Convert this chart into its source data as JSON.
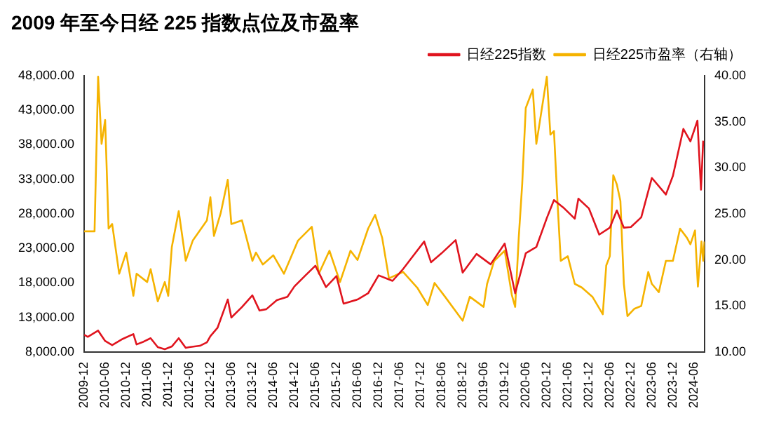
{
  "chart_data": {
    "type": "line",
    "title": "2009 年至今日经 225 指数点位及市盈率",
    "xlim": [
      "2009-12",
      "2024-09"
    ],
    "xticks": [
      "2009-12",
      "2010-06",
      "2010-12",
      "2011-06",
      "2011-12",
      "2012-06",
      "2012-12",
      "2013-06",
      "2013-12",
      "2014-06",
      "2014-12",
      "2015-06",
      "2015-12",
      "2016-06",
      "2016-12",
      "2017-06",
      "2017-12",
      "2018-06",
      "2018-12",
      "2019-06",
      "2019-12",
      "2020-06",
      "2020-12",
      "2021-06",
      "2021-12",
      "2022-06",
      "2022-12",
      "2023-06",
      "2023-12",
      "2024-06"
    ],
    "ylim": [
      8000,
      48000
    ],
    "yticks": [
      {
        "value": 8000,
        "label": "8,000.00"
      },
      {
        "value": 13000,
        "label": "13,000.00"
      },
      {
        "value": 18000,
        "label": "18,000.00"
      },
      {
        "value": 23000,
        "label": "23,000.00"
      },
      {
        "value": 28000,
        "label": "28,000.00"
      },
      {
        "value": 33000,
        "label": "33,000.00"
      },
      {
        "value": 38000,
        "label": "38,000.00"
      },
      {
        "value": 43000,
        "label": "43,000.00"
      },
      {
        "value": 48000,
        "label": "48,000.00"
      }
    ],
    "y2lim": [
      10,
      40
    ],
    "y2ticks": [
      {
        "value": 10,
        "label": "10.00"
      },
      {
        "value": 15,
        "label": "15.00"
      },
      {
        "value": 20,
        "label": "20.00"
      },
      {
        "value": 25,
        "label": "25.00"
      },
      {
        "value": 30,
        "label": "30.00"
      },
      {
        "value": 35,
        "label": "35.00"
      },
      {
        "value": 40,
        "label": "40.00"
      }
    ],
    "grid": false,
    "legend": "top right",
    "marker": "none",
    "line_style": "solid",
    "series": [
      {
        "name": "日经225指数",
        "color": "#e0141e",
        "x": [
          "2009-12",
          "2010-01",
          "2010-04",
          "2010-06",
          "2010-08",
          "2010-11",
          "2011-02",
          "2011-03",
          "2011-05",
          "2011-07",
          "2011-09",
          "2011-11",
          "2012-01",
          "2012-03",
          "2012-05",
          "2012-06",
          "2012-09",
          "2012-11",
          "2012-12",
          "2013-02",
          "2013-05",
          "2013-06",
          "2013-09",
          "2013-12",
          "2014-02",
          "2014-04",
          "2014-07",
          "2014-10",
          "2014-12",
          "2015-03",
          "2015-06",
          "2015-09",
          "2015-12",
          "2016-02",
          "2016-06",
          "2016-09",
          "2016-12",
          "2017-04",
          "2017-07",
          "2017-10",
          "2018-01",
          "2018-03",
          "2018-06",
          "2018-10",
          "2018-12",
          "2019-04",
          "2019-08",
          "2019-12",
          "2020-03",
          "2020-06",
          "2020-09",
          "2020-12",
          "2021-02",
          "2021-05",
          "2021-08",
          "2021-09",
          "2021-12",
          "2022-03",
          "2022-06",
          "2022-08",
          "2022-10",
          "2022-12",
          "2023-03",
          "2023-06",
          "2023-10",
          "2023-12",
          "2024-03",
          "2024-05",
          "2024-07",
          "2024-08",
          "2024-08-20"
        ],
        "values": [
          10500,
          10200,
          11100,
          9600,
          9000,
          9900,
          10600,
          9100,
          9500,
          10000,
          8700,
          8400,
          8800,
          10000,
          8600,
          8700,
          8900,
          9400,
          10300,
          11500,
          15600,
          13000,
          14500,
          16200,
          14000,
          14200,
          15500,
          16000,
          17500,
          19000,
          20500,
          17400,
          19000,
          15000,
          15600,
          16500,
          19100,
          18300,
          20000,
          22000,
          24000,
          21000,
          22300,
          24200,
          19500,
          22200,
          20700,
          23700,
          16500,
          22300,
          23200,
          27400,
          30000,
          28800,
          27300,
          30200,
          28800,
          25000,
          26000,
          28500,
          26000,
          26100,
          27500,
          33200,
          30800,
          33500,
          40300,
          38500,
          41500,
          31500,
          38600
        ]
      },
      {
        "name": "日经225市盈率（右轴）",
        "color": "#f5b300",
        "axis": "y2",
        "x": [
          "2009-12",
          "2010-03",
          "2010-04",
          "2010-05",
          "2010-06",
          "2010-07",
          "2010-08",
          "2010-10",
          "2010-12",
          "2011-02",
          "2011-03",
          "2011-06",
          "2011-07",
          "2011-09",
          "2011-11",
          "2011-12",
          "2012-01",
          "2012-03",
          "2012-05",
          "2012-07",
          "2012-11",
          "2012-12",
          "2013-01",
          "2013-03",
          "2013-05",
          "2013-06",
          "2013-09",
          "2013-12",
          "2014-01",
          "2014-03",
          "2014-06",
          "2014-09",
          "2015-01",
          "2015-05",
          "2015-07",
          "2015-10",
          "2016-01",
          "2016-04",
          "2016-06",
          "2016-09",
          "2016-11",
          "2017-01",
          "2017-03",
          "2017-07",
          "2017-11",
          "2018-02",
          "2018-04",
          "2018-07",
          "2018-12",
          "2019-02",
          "2019-06",
          "2019-07",
          "2019-09",
          "2019-12",
          "2020-02",
          "2020-03",
          "2020-04",
          "2020-05",
          "2020-06",
          "2020-08",
          "2020-09",
          "2020-10",
          "2020-12",
          "2021-01",
          "2021-02",
          "2021-03",
          "2021-04",
          "2021-06",
          "2021-08",
          "2021-10",
          "2022-01",
          "2022-04",
          "2022-05",
          "2022-06",
          "2022-07",
          "2022-08",
          "2022-09",
          "2022-10",
          "2022-11",
          "2023-01",
          "2023-03",
          "2023-05",
          "2023-06",
          "2023-08",
          "2023-10",
          "2023-12",
          "2024-02",
          "2024-04",
          "2024-05",
          "2024-06-10",
          "2024-07-05",
          "2024-08-05",
          "2024-08-20",
          "2024-08-31"
        ],
        "values": [
          23.1,
          23.1,
          39.9,
          32.6,
          35.2,
          23.4,
          23.9,
          18.5,
          20.8,
          16.1,
          18.5,
          17.6,
          19.0,
          15.5,
          17.6,
          16.1,
          21.4,
          25.3,
          19.9,
          22.1,
          24.3,
          26.8,
          22.6,
          25.1,
          28.7,
          23.9,
          24.3,
          19.9,
          20.8,
          19.5,
          20.5,
          18.5,
          22.1,
          23.6,
          18.5,
          21.0,
          17.6,
          21.0,
          20.0,
          23.4,
          24.9,
          22.4,
          18.0,
          18.7,
          17.0,
          15.1,
          17.5,
          16.0,
          13.4,
          16.0,
          14.9,
          17.4,
          19.9,
          21.0,
          16.2,
          14.9,
          22.4,
          28.2,
          36.5,
          38.5,
          32.6,
          35.0,
          39.9,
          33.6,
          34.0,
          26.9,
          19.9,
          20.4,
          17.4,
          17.0,
          16.0,
          14.1,
          19.4,
          20.4,
          29.2,
          28.2,
          26.4,
          17.4,
          13.9,
          14.7,
          15.0,
          18.7,
          17.4,
          16.5,
          19.9,
          19.9,
          23.4,
          22.4,
          21.7,
          23.2,
          17.1,
          22.0,
          19.9,
          22.0
        ]
      }
    ]
  }
}
